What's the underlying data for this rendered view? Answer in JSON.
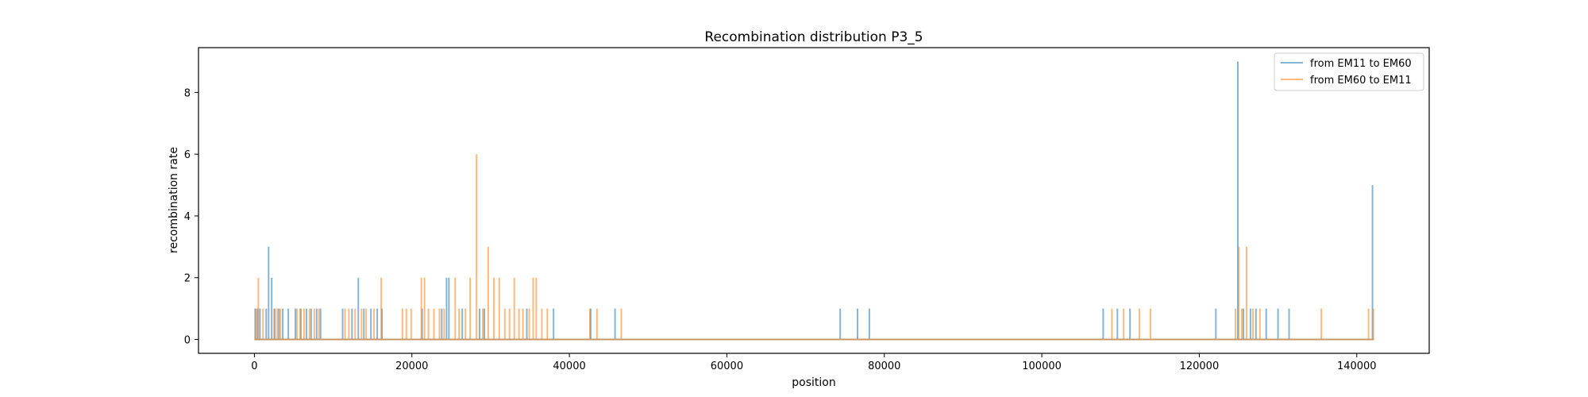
{
  "chart_data": {
    "type": "line",
    "title": "Recombination distribution P3_5",
    "xlabel": "position",
    "ylabel": "recombination rate",
    "xlim": [
      -7100,
      149200
    ],
    "ylim": [
      -0.45,
      9.45
    ],
    "x_ticks": [
      0,
      20000,
      40000,
      60000,
      80000,
      100000,
      120000,
      140000
    ],
    "y_ticks": [
      0,
      2,
      4,
      6,
      8
    ],
    "x_range": [
      0,
      142200
    ],
    "grid": false,
    "legend_position": "top-right",
    "series": [
      {
        "name": "from EM11 to EM60",
        "color": "#1f77b4",
        "spikes": [
          [
            100,
            1
          ],
          [
            400,
            1
          ],
          [
            700,
            1
          ],
          [
            1500,
            1
          ],
          [
            1800,
            3
          ],
          [
            2200,
            2
          ],
          [
            2600,
            1
          ],
          [
            3100,
            1
          ],
          [
            3600,
            1
          ],
          [
            4300,
            1
          ],
          [
            5200,
            1
          ],
          [
            5900,
            1
          ],
          [
            6600,
            1
          ],
          [
            7200,
            1
          ],
          [
            7900,
            1
          ],
          [
            8400,
            1
          ],
          [
            11200,
            1
          ],
          [
            12400,
            1
          ],
          [
            13200,
            2
          ],
          [
            13900,
            1
          ],
          [
            14800,
            1
          ],
          [
            15600,
            1
          ],
          [
            16200,
            1
          ],
          [
            21300,
            1
          ],
          [
            23800,
            1
          ],
          [
            24400,
            2
          ],
          [
            24700,
            2
          ],
          [
            26400,
            1
          ],
          [
            28600,
            1
          ],
          [
            29200,
            1
          ],
          [
            34600,
            1
          ],
          [
            38000,
            1
          ],
          [
            42700,
            1
          ],
          [
            45800,
            1
          ],
          [
            74400,
            1
          ],
          [
            76600,
            1
          ],
          [
            78100,
            1
          ],
          [
            107800,
            1
          ],
          [
            109600,
            1
          ],
          [
            111200,
            1
          ],
          [
            122100,
            1
          ],
          [
            124900,
            9
          ],
          [
            125600,
            1
          ],
          [
            126500,
            1
          ],
          [
            127200,
            1
          ],
          [
            128500,
            1
          ],
          [
            130000,
            1
          ],
          [
            131400,
            1
          ],
          [
            142000,
            5
          ]
        ]
      },
      {
        "name": "from EM60 to EM11",
        "color": "#ff7f0e",
        "spikes": [
          [
            200,
            1
          ],
          [
            500,
            2
          ],
          [
            1100,
            1
          ],
          [
            2500,
            1
          ],
          [
            2900,
            1
          ],
          [
            3300,
            1
          ],
          [
            5400,
            1
          ],
          [
            5800,
            1
          ],
          [
            6300,
            1
          ],
          [
            7000,
            1
          ],
          [
            7600,
            1
          ],
          [
            8200,
            1
          ],
          [
            11500,
            1
          ],
          [
            12000,
            1
          ],
          [
            12800,
            1
          ],
          [
            13600,
            1
          ],
          [
            14200,
            1
          ],
          [
            15200,
            1
          ],
          [
            16100,
            2
          ],
          [
            18800,
            1
          ],
          [
            19300,
            1
          ],
          [
            19900,
            1
          ],
          [
            21200,
            2
          ],
          [
            21600,
            2
          ],
          [
            22100,
            1
          ],
          [
            22800,
            1
          ],
          [
            23500,
            1
          ],
          [
            24100,
            1
          ],
          [
            25500,
            2
          ],
          [
            26000,
            1
          ],
          [
            26800,
            1
          ],
          [
            27400,
            2
          ],
          [
            28200,
            6
          ],
          [
            29000,
            1
          ],
          [
            29700,
            3
          ],
          [
            30400,
            2
          ],
          [
            31100,
            2
          ],
          [
            31800,
            1
          ],
          [
            32400,
            1
          ],
          [
            33000,
            2
          ],
          [
            33600,
            1
          ],
          [
            34100,
            1
          ],
          [
            34900,
            1
          ],
          [
            35400,
            2
          ],
          [
            35800,
            2
          ],
          [
            36500,
            1
          ],
          [
            37200,
            1
          ],
          [
            42600,
            1
          ],
          [
            43500,
            1
          ],
          [
            46600,
            1
          ],
          [
            108900,
            1
          ],
          [
            110400,
            1
          ],
          [
            112400,
            1
          ],
          [
            113800,
            1
          ],
          [
            124600,
            1
          ],
          [
            125000,
            3
          ],
          [
            125400,
            1
          ],
          [
            126000,
            3
          ],
          [
            126800,
            1
          ],
          [
            127700,
            1
          ],
          [
            135500,
            1
          ],
          [
            141500,
            1
          ],
          [
            142100,
            1
          ]
        ]
      }
    ]
  }
}
